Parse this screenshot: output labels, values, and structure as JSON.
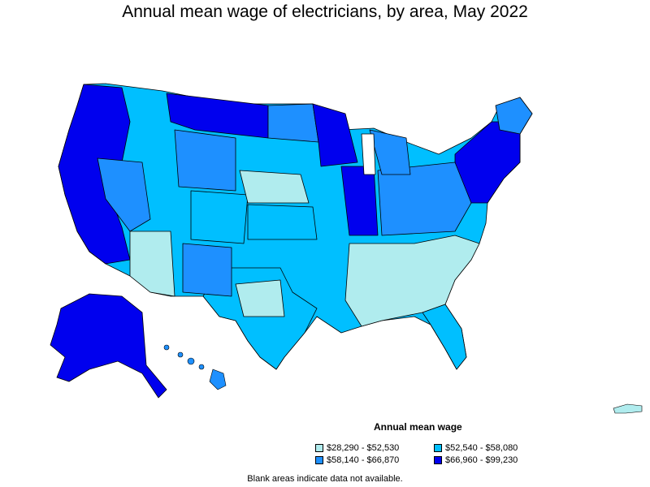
{
  "title": "Annual mean wage of electricians, by area, May 2022",
  "legend": {
    "title": "Annual mean wage",
    "items": [
      {
        "label": "$28,290 - $52,530",
        "color": "#b0ecee"
      },
      {
        "label": "$52,540 - $58,080",
        "color": "#00bfff"
      },
      {
        "label": "$58,140 - $66,870",
        "color": "#1e90ff"
      },
      {
        "label": "$66,960 - $99,230",
        "color": "#0000ee"
      }
    ]
  },
  "footnote": "Blank areas indicate data not available."
}
